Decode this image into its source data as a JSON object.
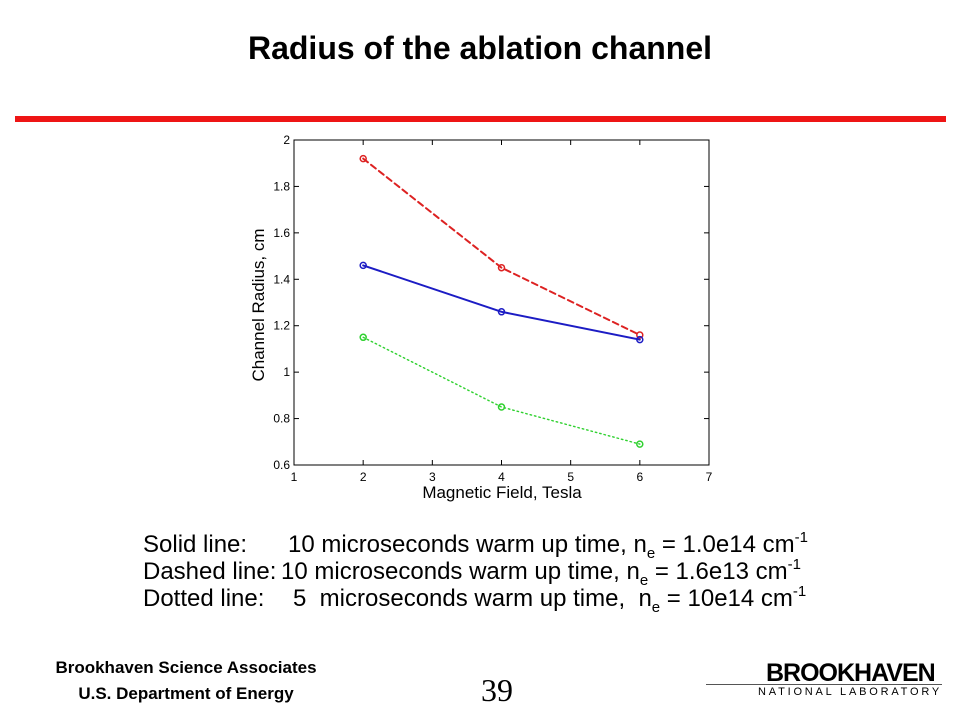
{
  "slide": {
    "title": "Radius of the ablation channel",
    "accent_color": "#ee1515",
    "page_number": "39",
    "footer": {
      "org": "Brookhaven Science Associates",
      "department": "U.S. Department of Energy"
    },
    "logo": {
      "wordmark": "BROOKHAVEN",
      "tagline": "NATIONAL LABORATORY"
    }
  },
  "notes": [
    {
      "label": "Solid line:",
      "desc": "10 microseconds warm up time, n",
      "sub": "e",
      "eq": " = 1.0e14 cm",
      "sup": "-1"
    },
    {
      "label": "Dashed line:",
      "desc": "10 microseconds warm up time, n",
      "sub": "e",
      "eq": " = 1.6e13 cm",
      "sup": "-1"
    },
    {
      "label": "Dotted line:",
      "desc": "5  microseconds warm up time,  n",
      "sub": "e",
      "eq": " = 10e14 cm",
      "sup": "-1"
    }
  ],
  "chart_data": {
    "type": "line",
    "x": [
      2,
      4,
      6
    ],
    "series": [
      {
        "style": "solid",
        "color": "#1c1cc4",
        "values": [
          1.46,
          1.26,
          1.14
        ]
      },
      {
        "style": "dashed",
        "color": "#dd2222",
        "values": [
          1.92,
          1.45,
          1.16
        ]
      },
      {
        "style": "dotted",
        "color": "#2fd12f",
        "values": [
          1.15,
          0.85,
          0.69
        ]
      }
    ],
    "marker": "open-circle",
    "xlabel": "Magnetic Field, Tesla",
    "ylabel": "Channel Radius, cm",
    "xlim": [
      1,
      7
    ],
    "ylim": [
      0.6,
      2
    ],
    "xticks": [
      1,
      2,
      3,
      4,
      5,
      6,
      7
    ],
    "yticks": [
      0.6,
      0.8,
      1,
      1.2,
      1.4,
      1.6,
      1.8,
      2
    ],
    "grid": false,
    "legend": "none"
  }
}
